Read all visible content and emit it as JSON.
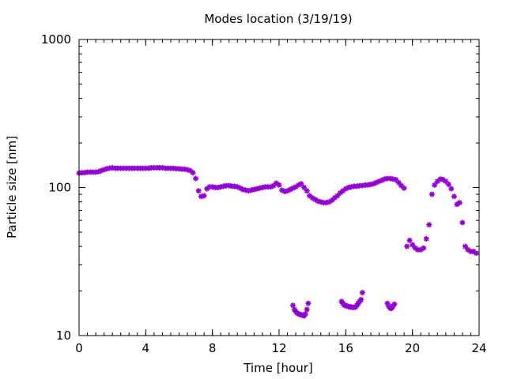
{
  "chart_data": {
    "type": "scatter",
    "title": "Modes location (3/19/19)",
    "xlabel": "Time [hour]",
    "ylabel": "Particle size [nm]",
    "xlim": [
      0,
      24
    ],
    "ylim": [
      10,
      1000
    ],
    "y_scale": "log",
    "grid": false,
    "x_ticks": [
      0,
      4,
      8,
      12,
      16,
      20,
      24
    ],
    "x_tick_labels": [
      "0",
      "4",
      "8",
      "12",
      "16",
      "20",
      "24"
    ],
    "y_ticks": [
      10,
      100,
      1000
    ],
    "y_tick_labels": [
      "10",
      "100",
      "1000"
    ],
    "marker_color": "#9400D3",
    "series": [
      {
        "x": [
          0.0,
          0.17,
          0.33,
          0.5,
          0.67,
          0.83,
          1.0,
          1.17,
          1.33,
          1.5,
          1.67,
          1.83,
          2.0,
          2.17,
          2.33,
          2.5,
          2.67,
          2.83,
          3.0,
          3.17,
          3.33,
          3.5,
          3.67,
          3.83,
          4.0,
          4.17,
          4.33,
          4.5,
          4.67,
          4.83,
          5.0,
          5.17,
          5.33,
          5.5,
          5.67,
          5.83,
          6.0,
          6.17,
          6.33,
          6.5,
          6.67,
          6.83,
          7.0,
          7.17,
          7.33,
          7.5,
          7.67,
          7.83,
          8.0,
          8.17,
          8.33,
          8.5,
          8.67,
          8.83,
          9.0,
          9.17,
          9.33,
          9.5,
          9.67,
          9.83,
          10.0,
          10.17,
          10.33,
          10.5,
          10.67,
          10.83,
          11.0,
          11.17,
          11.33,
          11.5,
          11.67,
          11.83,
          12.0,
          12.17,
          12.33,
          12.5,
          12.67,
          12.83,
          13.0,
          13.17,
          13.33,
          13.5,
          13.67,
          13.83,
          14.0,
          14.17,
          14.33,
          14.5,
          14.67,
          14.83,
          15.0,
          15.17,
          15.33,
          15.5,
          15.67,
          15.83,
          16.0,
          16.17,
          16.33,
          16.5,
          16.67,
          16.83,
          17.0,
          17.17,
          17.33,
          17.5,
          17.67,
          17.83,
          18.0,
          18.17,
          18.33,
          18.5,
          18.67,
          18.83,
          19.0,
          19.17,
          19.33,
          19.5
        ],
        "y": [
          125,
          126,
          126,
          127,
          127,
          127,
          127,
          128,
          130,
          132,
          134,
          135,
          136,
          135,
          135,
          135,
          135,
          135,
          135,
          135,
          135,
          135,
          135,
          135,
          135,
          135,
          136,
          136,
          136,
          136,
          136,
          135,
          135,
          135,
          135,
          134,
          134,
          133,
          133,
          132,
          130,
          126,
          115,
          95,
          87,
          88,
          98,
          101,
          101,
          100,
          100,
          101,
          102,
          103,
          103,
          102,
          102,
          101,
          99,
          97,
          96,
          95,
          96,
          97,
          98,
          99,
          100,
          101,
          101,
          101,
          103,
          107,
          104,
          96,
          94,
          95,
          97,
          99,
          101,
          104,
          106,
          100,
          95,
          88,
          85,
          83,
          81,
          80,
          79,
          79,
          80,
          82,
          85,
          88,
          92,
          95,
          98,
          100,
          101,
          102,
          102,
          103,
          103,
          104,
          104,
          105,
          106,
          108,
          110,
          112,
          114,
          115,
          115,
          114,
          113,
          108,
          103,
          99
        ]
      },
      {
        "x": [
          19.67,
          19.83,
          20.0,
          20.17,
          20.33,
          20.5,
          20.67,
          20.83,
          21.0,
          21.17,
          21.33,
          21.5,
          21.67,
          21.83,
          22.0,
          22.17,
          22.33,
          22.5,
          22.67,
          22.83,
          23.0,
          23.17,
          23.33,
          23.5,
          23.67,
          23.83
        ],
        "y": [
          40,
          44,
          41,
          39,
          38,
          38,
          39,
          45,
          56,
          90,
          104,
          110,
          114,
          113,
          110,
          105,
          98,
          87,
          77,
          79,
          58,
          40,
          38,
          37,
          37,
          36
        ]
      },
      {
        "x": [
          12.83,
          12.92,
          13.0,
          13.08,
          13.17,
          13.25,
          13.33,
          13.42,
          13.5,
          13.58,
          13.67,
          13.75
        ],
        "y": [
          16,
          15,
          14.5,
          14.2,
          14,
          13.9,
          13.8,
          13.7,
          13.6,
          14,
          15,
          16.5
        ]
      },
      {
        "x": [
          15.75,
          15.83,
          15.92,
          16.0,
          16.08,
          16.17,
          16.25,
          16.33,
          16.42,
          16.5,
          16.58,
          16.67,
          16.75,
          16.83,
          16.92,
          17.0
        ],
        "y": [
          17,
          16.5,
          16,
          16,
          15.8,
          15.7,
          15.6,
          15.6,
          15.5,
          15.5,
          15.6,
          16,
          16.5,
          17,
          17.5,
          19.5
        ]
      },
      {
        "x": [
          18.5,
          18.58,
          18.67,
          18.75,
          18.83,
          18.92
        ],
        "y": [
          16.5,
          15.8,
          15.3,
          15.3,
          15.8,
          16.3
        ]
      }
    ]
  }
}
